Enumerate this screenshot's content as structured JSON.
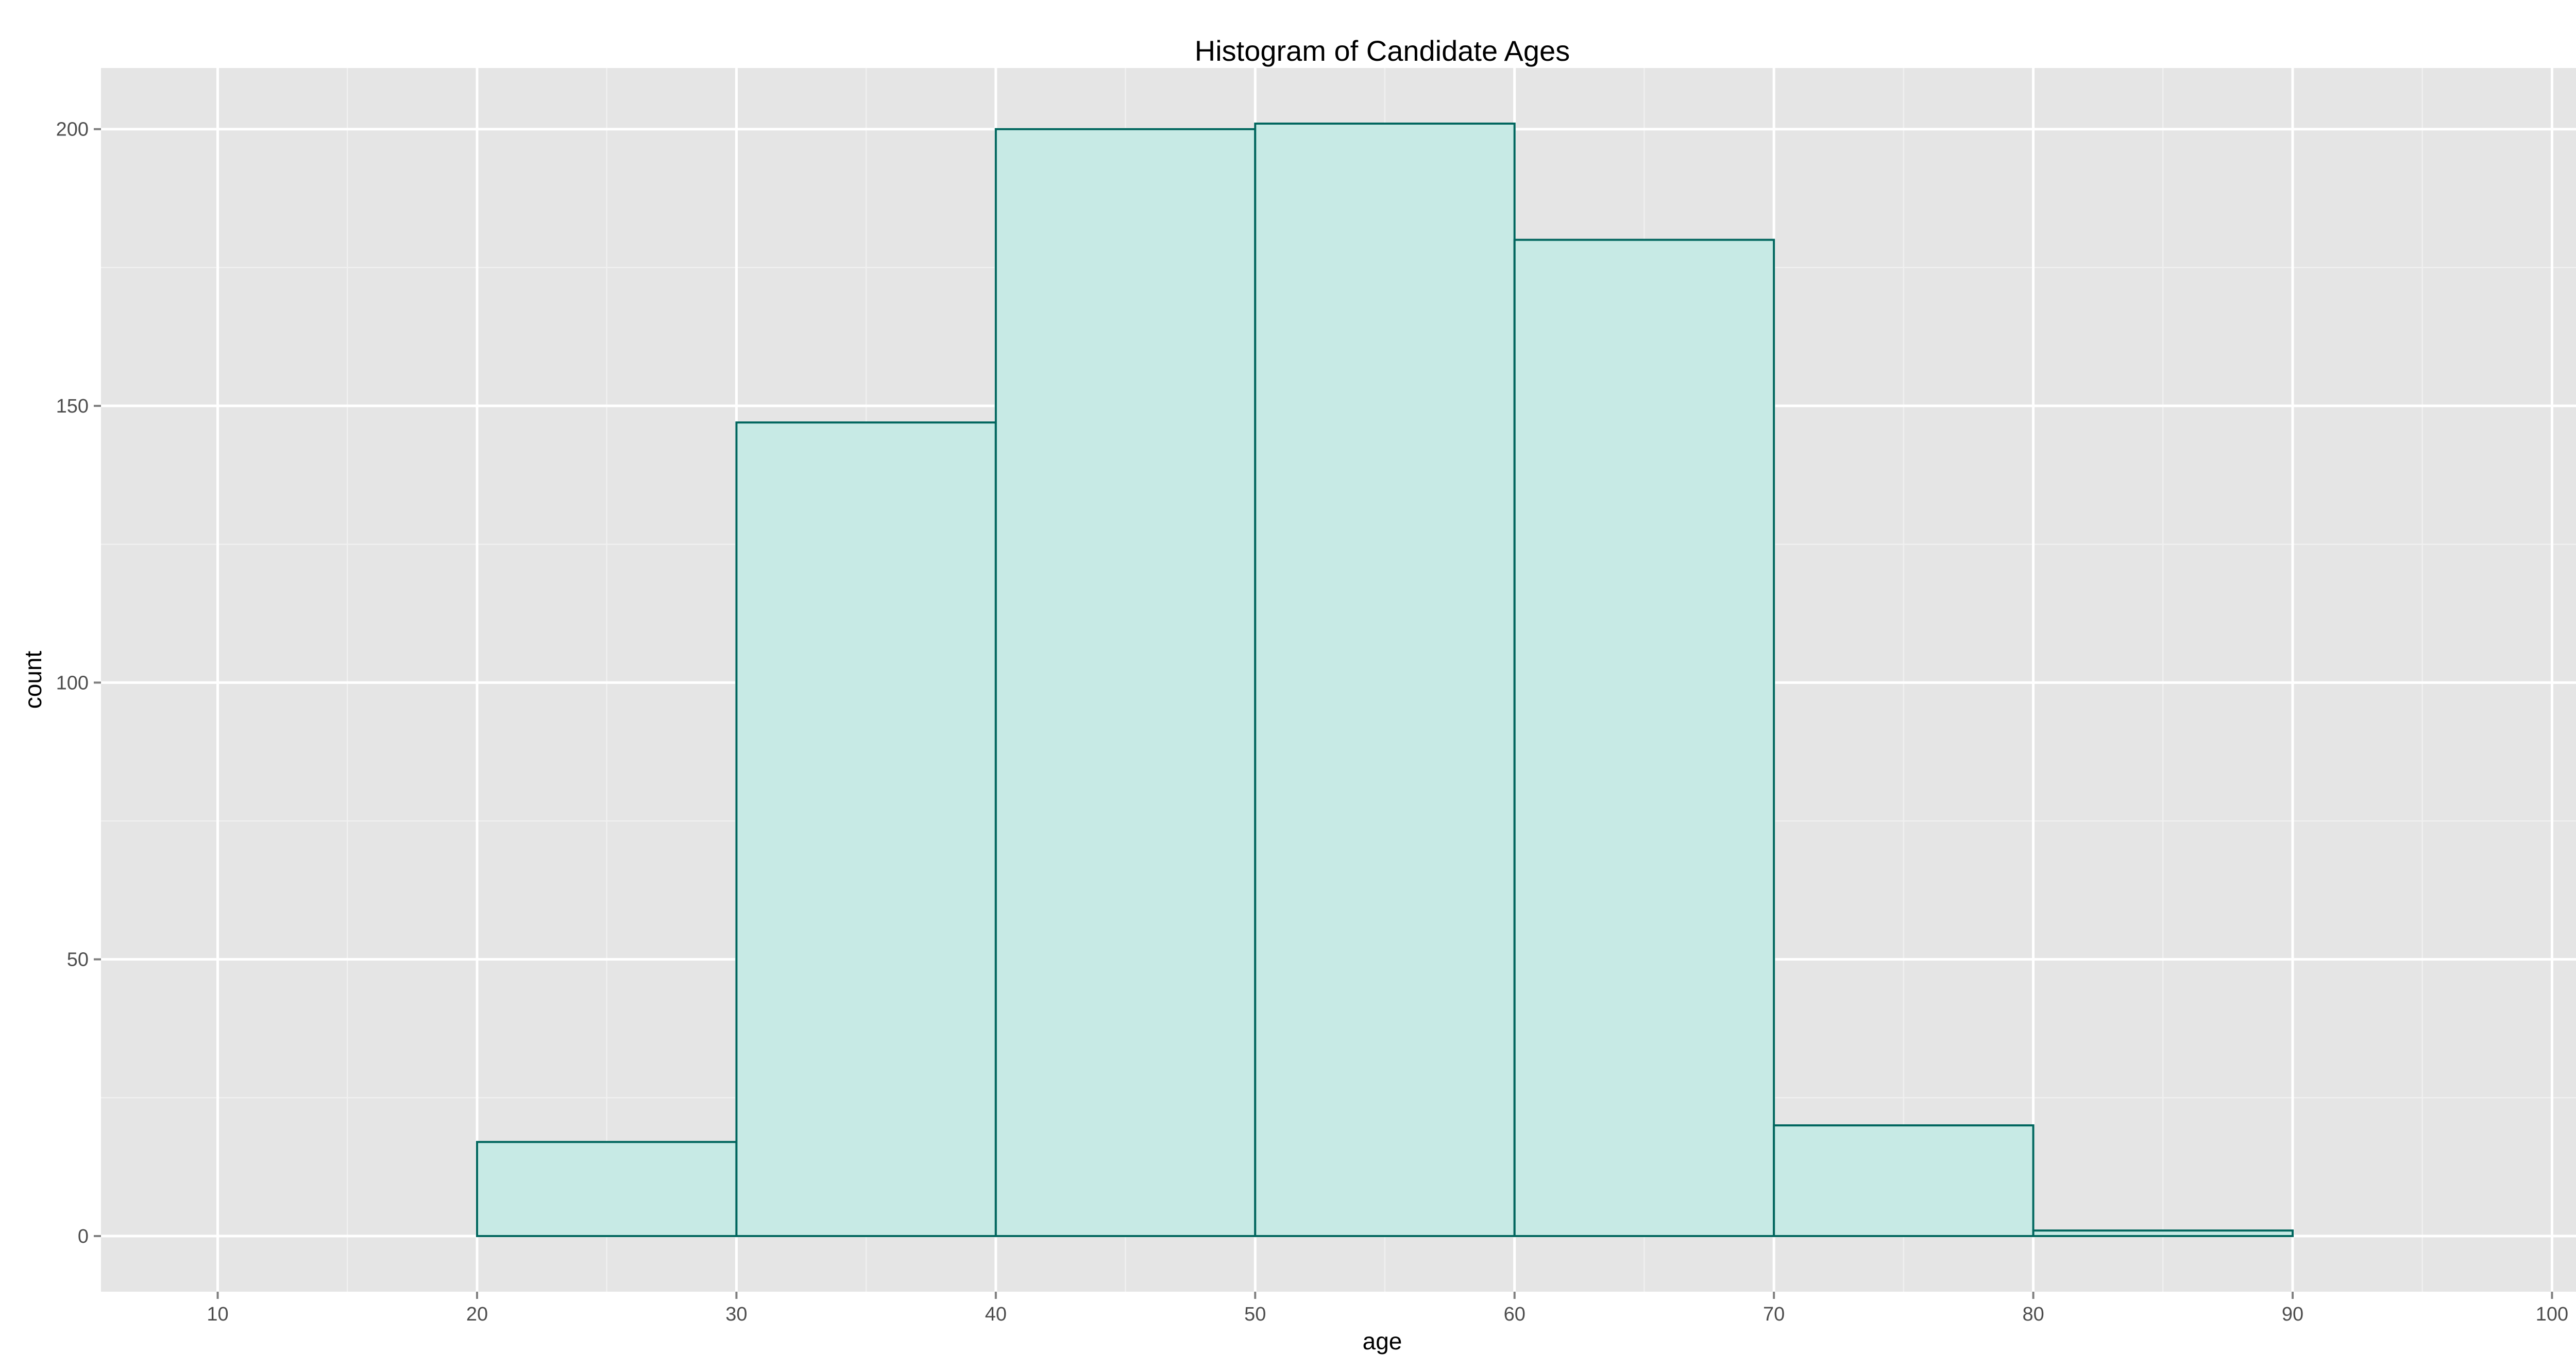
{
  "chart_data": {
    "type": "bar",
    "title": "Histogram of Candidate Ages",
    "xlabel": "age",
    "ylabel": "count",
    "bins": [
      {
        "start": 10,
        "end": 20,
        "count": 0
      },
      {
        "start": 20,
        "end": 30,
        "count": 17
      },
      {
        "start": 30,
        "end": 40,
        "count": 147
      },
      {
        "start": 40,
        "end": 50,
        "count": 200
      },
      {
        "start": 50,
        "end": 60,
        "count": 201
      },
      {
        "start": 60,
        "end": 70,
        "count": 180
      },
      {
        "start": 70,
        "end": 80,
        "count": 20
      },
      {
        "start": 80,
        "end": 90,
        "count": 1
      },
      {
        "start": 90,
        "end": 100,
        "count": 0
      }
    ],
    "xlim": [
      5.5,
      104.5
    ],
    "ylim": [
      -10.05,
      211.05
    ],
    "x_ticks": [
      "10",
      "20",
      "30",
      "40",
      "50",
      "60",
      "70",
      "80",
      "90",
      "100"
    ],
    "y_ticks": [
      "0",
      "50",
      "100",
      "150",
      "200"
    ],
    "grid": true,
    "colors": {
      "panel_background": "#e5e5e5",
      "grid_major": "#ffffff",
      "grid_minor": "#f0f0f0",
      "bar_fill": "#c7eae5",
      "bar_outline": "#01665e",
      "tick_text": "#4d4d4d"
    }
  }
}
